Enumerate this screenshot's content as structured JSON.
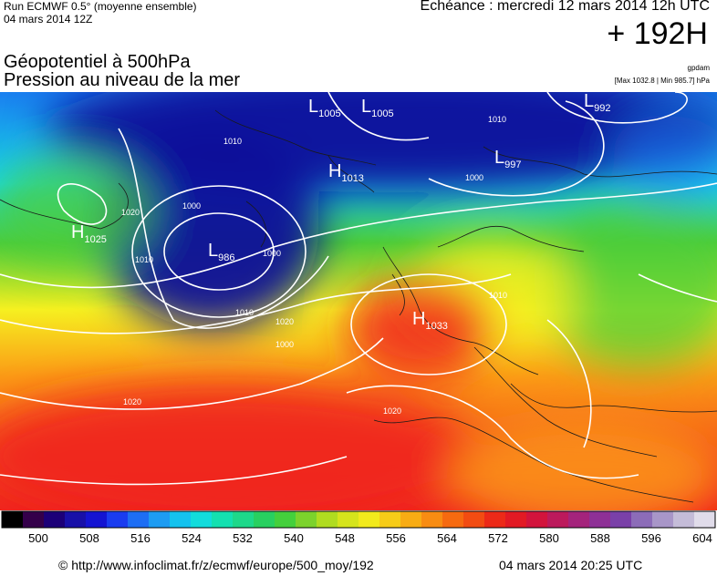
{
  "header": {
    "run_line": "Run ECMWF 0.5° (moyenne ensemble)",
    "run_date": "04 mars 2014 12Z",
    "echeance": "Echéance : mercredi 12 mars 2014 12h UTC",
    "lead_time": "+ 192H",
    "author": "gpdam",
    "max_min": "[Max 1032.8 | Min 985.7] hPa"
  },
  "titles": {
    "line1": "Géopotentiel à 500hPa",
    "line2": "Pression au niveau de la mer"
  },
  "map": {
    "pressure_centers": [
      {
        "type": "H",
        "value": "1025"
      },
      {
        "type": "L",
        "value": "986"
      },
      {
        "type": "L",
        "value": "1005"
      },
      {
        "type": "L",
        "value": "1005"
      },
      {
        "type": "L",
        "value": "992"
      },
      {
        "type": "L",
        "value": "997"
      },
      {
        "type": "H",
        "value": "1013"
      },
      {
        "type": "H",
        "value": "1033"
      }
    ],
    "isobar_labels": [
      "1010",
      "1020",
      "1000",
      "1010",
      "1000",
      "1010",
      "1000",
      "1010",
      "1000",
      "1020",
      "1020",
      "1020",
      "1010"
    ],
    "colors": {
      "low": "#0d0d9a",
      "mid_low": "#1a7ff0",
      "cyan": "#17d9e8",
      "green": "#4ccd3a",
      "yellow": "#f6f020",
      "orange": "#fb9a16",
      "red": "#f0231c",
      "high": "#8c2c8c"
    }
  },
  "scale": {
    "labels": [
      "500",
      "508",
      "516",
      "524",
      "532",
      "540",
      "548",
      "556",
      "564",
      "572",
      "580",
      "588",
      "596",
      "604"
    ],
    "colors": [
      "#000000",
      "#34004a",
      "#1c0078",
      "#1810a8",
      "#1414d2",
      "#1a3cf0",
      "#1e6ef4",
      "#1e9cf2",
      "#14c2ee",
      "#12dcdc",
      "#14e0b0",
      "#1ed88a",
      "#28d060",
      "#44d03c",
      "#7cd22c",
      "#b0dc20",
      "#d6e41c",
      "#f2ea1c",
      "#f6cc18",
      "#f8ac14",
      "#f88c12",
      "#f66a10",
      "#f24c12",
      "#ec2a18",
      "#e21a24",
      "#d2143c",
      "#bc1a5c",
      "#a4247c",
      "#8e3096",
      "#7a40a8",
      "#8c6cb8",
      "#a896c8",
      "#c4bcd8",
      "#e0dcea"
    ]
  },
  "footer": {
    "source": "© http://www.infoclimat.fr/z/ecmwf/europe/500_moy/192",
    "timestamp": "04 mars 2014 20:25 UTC"
  }
}
